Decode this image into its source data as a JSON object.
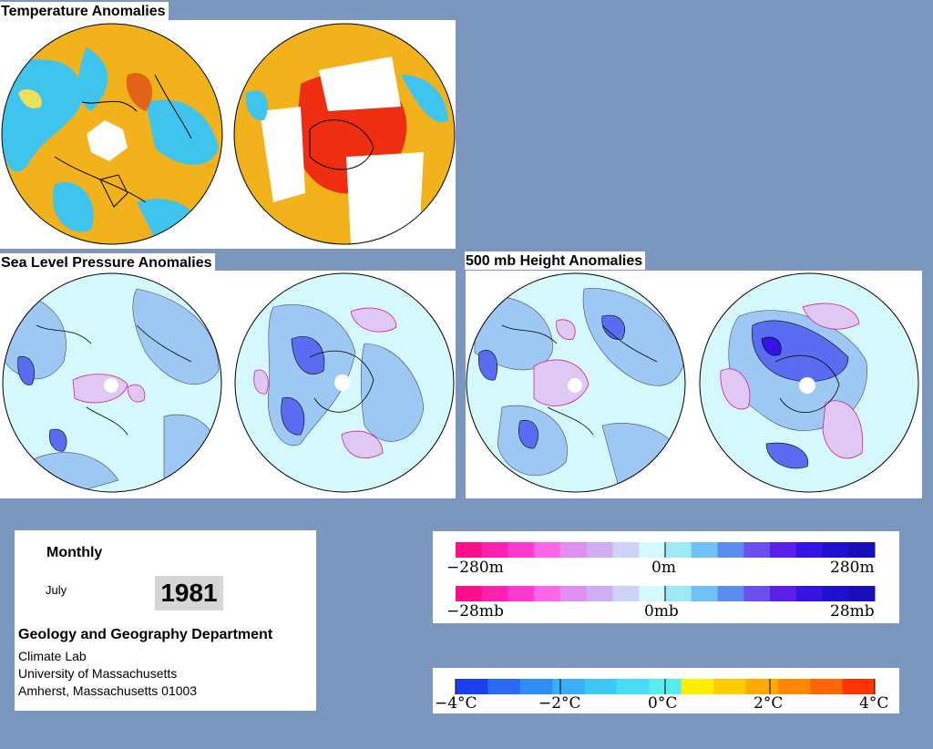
{
  "panels": {
    "temperature": {
      "title": "Temperature Anomalies"
    },
    "slp": {
      "title": "Sea Level Pressure Anomalies"
    },
    "height500": {
      "title": "500 mb Height Anomalies"
    }
  },
  "info": {
    "frequency": "Monthly",
    "month": "July",
    "year": "1981",
    "department": "Geology and Geography Department",
    "lab": "Climate Lab",
    "university": "University of Massachusetts",
    "address": "Amherst, Massachusetts 01003"
  },
  "legend_height": {
    "min": "−280m",
    "mid": "0m",
    "max": "280m",
    "colors": [
      "#ff0f8c",
      "#ff20b0",
      "#ff3ad0",
      "#ff66e8",
      "#e08ef0",
      "#d2acf2",
      "#cfd2f8",
      "#d4f8fc",
      "#9ee8f8",
      "#6ec0f5",
      "#5a8cf0",
      "#6a4ef0",
      "#5a20e8",
      "#3414e0",
      "#2210d0",
      "#1a0eb8"
    ]
  },
  "legend_pressure": {
    "min": "−28mb",
    "mid": "0mb",
    "max": "28mb",
    "colors": [
      "#ff0f8c",
      "#ff20b0",
      "#ff3ad0",
      "#ff66e8",
      "#e08ef0",
      "#d2acf2",
      "#cfd2f8",
      "#d4f8fc",
      "#9ee8f8",
      "#6ec0f5",
      "#5a8cf0",
      "#6a4ef0",
      "#5a20e8",
      "#3414e0",
      "#2210d0",
      "#1a0eb8"
    ]
  },
  "legend_temperature": {
    "labels": [
      "−4°C",
      "−2°C",
      "0°C",
      "2°C",
      "4°C"
    ],
    "colors": [
      "#1a3ef0",
      "#2a6af0",
      "#2e8ef4",
      "#3aaef6",
      "#40c8f4",
      "#48dcf2",
      "#58ecee",
      "#ffee00",
      "#ffcc00",
      "#ffaa00",
      "#ff8800",
      "#ff6600",
      "#ff3300"
    ]
  },
  "colors": {
    "background": "#7b97bd",
    "temp_warm": "#f5a623",
    "temp_cool": "#29c6ee",
    "contour_light": "#d4f8fc",
    "contour_mid": "#9ec8f4",
    "contour_dark": "#5a6cf0",
    "contour_pos": "#e0a8ec"
  }
}
